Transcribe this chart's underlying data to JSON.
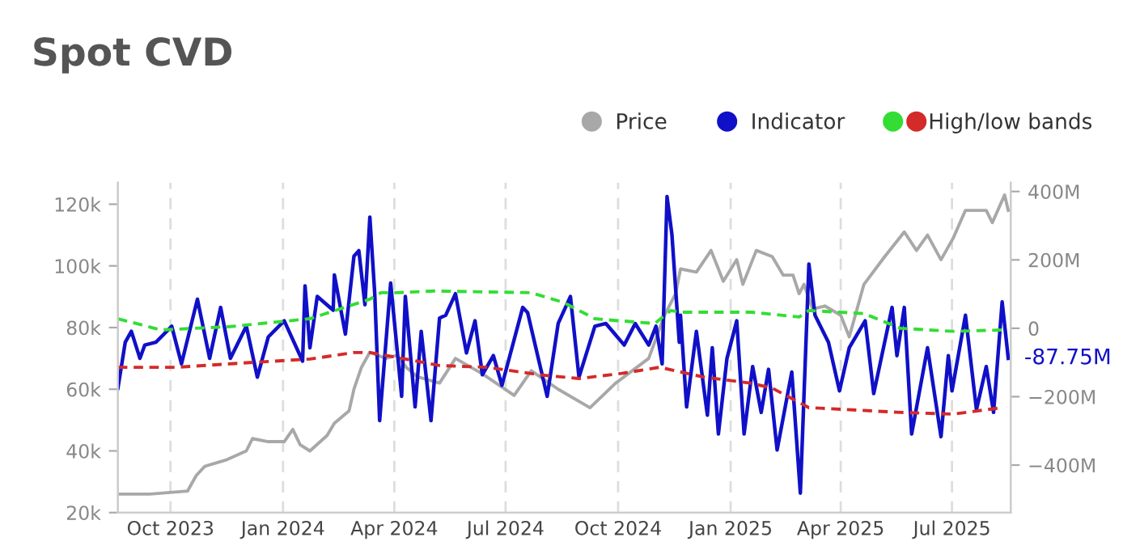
{
  "chart_data": {
    "type": "line",
    "title": "Spot CVD",
    "xlim": [
      "2023-08-19",
      "2025-08-18"
    ],
    "xticks": [
      {
        "value": "2023-10-01",
        "label": "Oct 2023"
      },
      {
        "value": "2024-01-01",
        "label": "Jan 2024"
      },
      {
        "value": "2024-04-01",
        "label": "Apr 2024"
      },
      {
        "value": "2024-07-01",
        "label": "Jul 2024"
      },
      {
        "value": "2024-10-01",
        "label": "Oct 2024"
      },
      {
        "value": "2025-01-01",
        "label": "Jan 2025"
      },
      {
        "value": "2025-04-01",
        "label": "Apr 2025"
      },
      {
        "value": "2025-07-01",
        "label": "Jul 2025"
      }
    ],
    "ylim": [
      20,
      127
    ],
    "yticks": [
      {
        "value": 20,
        "label": "20k"
      },
      {
        "value": 40,
        "label": "40k"
      },
      {
        "value": 60,
        "label": "60k"
      },
      {
        "value": 80,
        "label": "80k"
      },
      {
        "value": 100,
        "label": "100k"
      },
      {
        "value": 120,
        "label": "120k"
      }
    ],
    "y2lim": [
      -539,
      426
    ],
    "y2ticks": [
      {
        "value": -400,
        "label": "−400M"
      },
      {
        "value": -200,
        "label": "−200M"
      },
      0,
      {
        "value": 200,
        "label": "200M"
      },
      {
        "value": 400,
        "label": "400M"
      }
    ],
    "grid": "x",
    "legend": "top right",
    "annotations": [
      "-87.75M"
    ],
    "series": [
      {
        "name": "Price",
        "color": "#a8a8a8",
        "line_style": "solid",
        "x": [
          "2023-08-19",
          "2023-09-14",
          "2023-10-15",
          "2023-10-22",
          "2023-10-29",
          "2023-11-15",
          "2023-12-02",
          "2023-12-07",
          "2023-12-20",
          "2024-01-02",
          "2024-01-09",
          "2024-01-15",
          "2024-01-23",
          "2024-02-06",
          "2024-02-12",
          "2024-02-24",
          "2024-02-28",
          "2024-03-05",
          "2024-03-12",
          "2024-03-25",
          "2024-04-03",
          "2024-04-11",
          "2024-04-20",
          "2024-05-08",
          "2024-05-21",
          "2024-06-12",
          "2024-07-08",
          "2024-07-22",
          "2024-08-13",
          "2024-09-08",
          "2024-09-29",
          "2024-10-26",
          "2024-11-08",
          "2024-11-17",
          "2024-11-21",
          "2024-12-04",
          "2024-12-16",
          "2024-12-26",
          "2025-01-06",
          "2025-01-11",
          "2025-01-22",
          "2025-02-04",
          "2025-02-13",
          "2025-02-21",
          "2025-02-26",
          "2025-03-02",
          "2025-03-09",
          "2025-03-19",
          "2025-04-01",
          "2025-04-08",
          "2025-04-20",
          "2025-05-07",
          "2025-05-23",
          "2025-06-02",
          "2025-06-11",
          "2025-06-22",
          "2025-07-02",
          "2025-07-12",
          "2025-07-29",
          "2025-08-03",
          "2025-08-13",
          "2025-08-16"
        ],
        "values": [
          26,
          26,
          27,
          32,
          35,
          37,
          40,
          44,
          43,
          43,
          47,
          42,
          40,
          45,
          49,
          53,
          60,
          67,
          72,
          70,
          71,
          67,
          64,
          62,
          70,
          65,
          58,
          66,
          60,
          54,
          62,
          70,
          84,
          91,
          99,
          98,
          105,
          95,
          102,
          94,
          105,
          103,
          97,
          97,
          91,
          94,
          86,
          87,
          84,
          77,
          94,
          103,
          111,
          105,
          110,
          102,
          109,
          118,
          118,
          114,
          123,
          118
        ]
      },
      {
        "name": "Indicator",
        "color": "#1010c8",
        "axis": "y2",
        "line_style": "solid",
        "x": [
          "2023-08-19",
          "2023-08-25",
          "2023-08-30",
          "2023-09-06",
          "2023-09-10",
          "2023-09-19",
          "2023-10-02",
          "2023-10-10",
          "2023-10-23",
          "2023-11-02",
          "2023-11-11",
          "2023-11-19",
          "2023-12-02",
          "2023-12-11",
          "2023-12-20",
          "2024-01-02",
          "2024-01-17",
          "2024-01-19",
          "2024-01-23",
          "2024-01-29",
          "2024-02-11",
          "2024-02-12",
          "2024-02-21",
          "2024-02-28",
          "2024-03-03",
          "2024-03-08",
          "2024-03-12",
          "2024-03-16",
          "2024-03-20",
          "2024-03-29",
          "2024-04-07",
          "2024-04-10",
          "2024-04-18",
          "2024-04-23",
          "2024-05-01",
          "2024-05-08",
          "2024-05-13",
          "2024-05-21",
          "2024-05-30",
          "2024-06-06",
          "2024-06-12",
          "2024-06-21",
          "2024-06-28",
          "2024-07-15",
          "2024-07-19",
          "2024-08-04",
          "2024-08-13",
          "2024-08-23",
          "2024-08-30",
          "2024-09-12",
          "2024-09-21",
          "2024-10-06",
          "2024-10-15",
          "2024-10-26",
          "2024-11-01",
          "2024-11-06",
          "2024-11-10",
          "2024-11-14",
          "2024-11-20",
          "2024-11-21",
          "2024-11-26",
          "2024-12-04",
          "2024-12-13",
          "2024-12-17",
          "2024-12-22",
          "2024-12-29",
          "2025-01-06",
          "2025-01-12",
          "2025-01-19",
          "2025-01-26",
          "2025-02-01",
          "2025-02-08",
          "2025-02-20",
          "2025-02-27",
          "2025-03-06",
          "2025-03-11",
          "2025-03-22",
          "2025-03-31",
          "2025-04-08",
          "2025-04-21",
          "2025-04-28",
          "2025-05-13",
          "2025-05-17",
          "2025-05-23",
          "2025-05-29",
          "2025-06-11",
          "2025-06-22",
          "2025-06-28",
          "2025-07-01",
          "2025-07-12",
          "2025-07-21",
          "2025-07-29",
          "2025-08-04",
          "2025-08-11",
          "2025-08-16"
        ],
        "values": [
          -175,
          -41,
          -9,
          -88,
          -49,
          -41,
          6,
          -104,
          85,
          -88,
          61,
          -88,
          6,
          -143,
          -25,
          22,
          -96,
          124,
          -57,
          93,
          53,
          156,
          -17,
          211,
          227,
          69,
          325,
          101,
          -270,
          132,
          -199,
          93,
          -230,
          -9,
          -270,
          30,
          38,
          101,
          -72,
          22,
          -136,
          -80,
          -167,
          61,
          46,
          -199,
          14,
          93,
          -143,
          6,
          14,
          -49,
          14,
          -49,
          6,
          -104,
          385,
          274,
          -41,
          38,
          -230,
          -9,
          -254,
          -57,
          -309,
          -88,
          22,
          -309,
          -112,
          -246,
          -120,
          -356,
          -128,
          -482,
          188,
          38,
          -41,
          -183,
          -57,
          22,
          -191,
          61,
          -80,
          61,
          -309,
          -57,
          -317,
          -80,
          -183,
          38,
          -238,
          -112,
          -246,
          77,
          -87.75
        ]
      },
      {
        "color": "#33dd33",
        "axis": "y2",
        "line_style": "dashed",
        "x": [
          "2023-08-19",
          "2023-09-23",
          "2023-11-19",
          "2024-01-23",
          "2024-03-12",
          "2024-03-21",
          "2024-04-03",
          "2024-05-04",
          "2024-07-22",
          "2024-08-17",
          "2024-09-12",
          "2024-09-25",
          "2024-10-31",
          "2024-11-13",
          "2024-11-21",
          "2025-01-18",
          "2025-02-26",
          "2025-03-06",
          "2025-04-20",
          "2025-05-20",
          "2025-07-02",
          "2025-08-11"
        ],
        "values": [
          28,
          -5,
          5,
          28,
          85,
          104,
          104,
          109,
          104,
          76,
          28,
          24,
          14,
          52,
          47,
          47,
          33,
          52,
          43,
          0,
          -9,
          -5
        ]
      },
      {
        "name": "High/low bands",
        "color": "#d42a2a",
        "axis": "y2",
        "line_style": "dashed",
        "x": [
          "2023-08-19",
          "2023-10-06",
          "2023-12-11",
          "2024-01-23",
          "2024-02-28",
          "2024-03-12",
          "2024-04-03",
          "2024-05-08",
          "2024-06-16",
          "2024-07-31",
          "2024-08-30",
          "2024-10-04",
          "2024-11-04",
          "2024-12-09",
          "2025-01-18",
          "2025-02-04",
          "2025-03-06",
          "2025-05-20",
          "2025-07-02",
          "2025-08-11"
        ],
        "values": [
          -114,
          -114,
          -99,
          -90,
          -71,
          -71,
          -85,
          -109,
          -114,
          -137,
          -147,
          -132,
          -114,
          -142,
          -161,
          -175,
          -232,
          -246,
          -251,
          -232
        ]
      }
    ]
  }
}
